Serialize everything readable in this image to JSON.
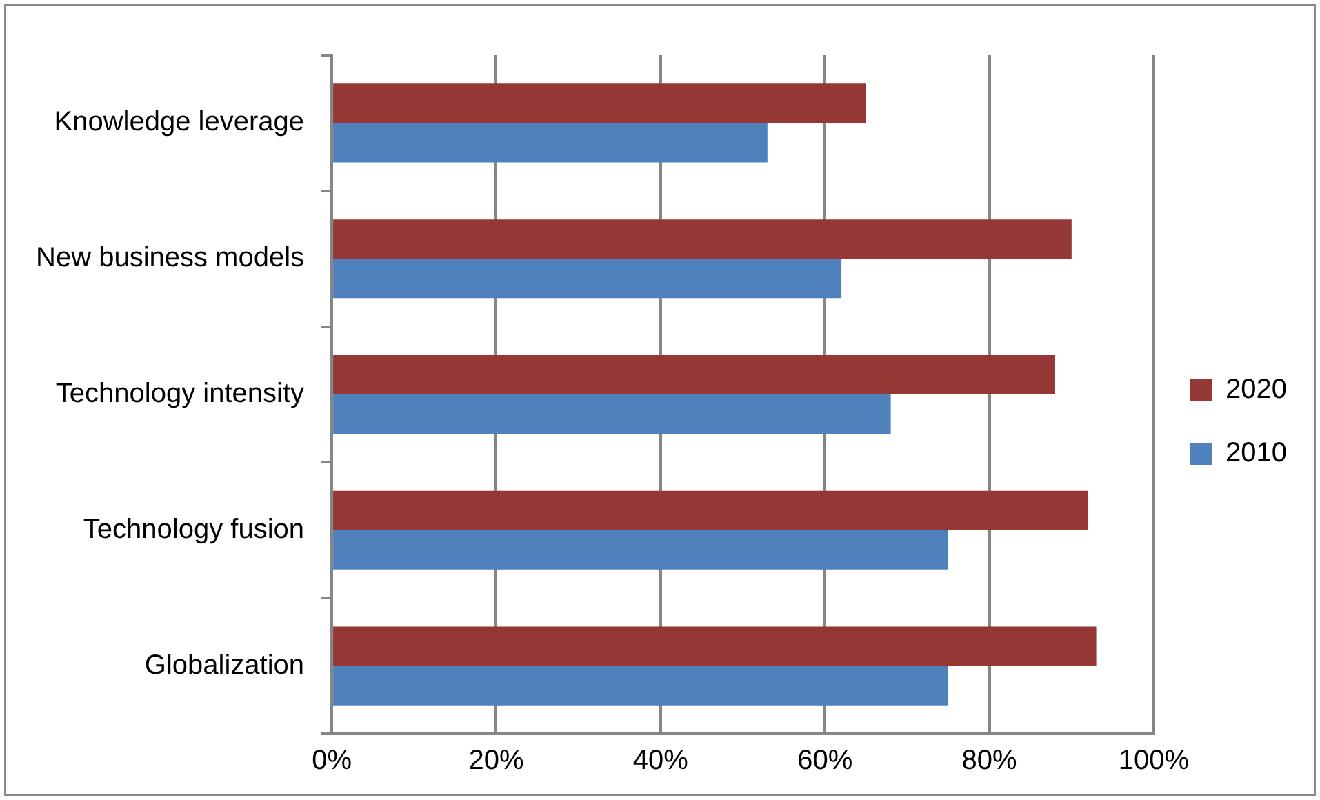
{
  "chart_data": {
    "type": "bar",
    "orientation": "horizontal",
    "categories": [
      "Knowledge leverage",
      "New business models",
      "Technology intensity",
      "Technology fusion",
      "Globalization"
    ],
    "series": [
      {
        "name": "2020",
        "color": "#953735",
        "values": [
          65,
          90,
          88,
          92,
          93
        ]
      },
      {
        "name": "2010",
        "color": "#4f81bd",
        "values": [
          53,
          62,
          68,
          75,
          75
        ]
      }
    ],
    "xlim": [
      0,
      100
    ],
    "xticks": [
      {
        "value": 0,
        "label": "0%"
      },
      {
        "value": 20,
        "label": "20%"
      },
      {
        "value": 40,
        "label": "40%"
      },
      {
        "value": 60,
        "label": "60%"
      },
      {
        "value": 80,
        "label": "80%"
      },
      {
        "value": 100,
        "label": "100%"
      }
    ],
    "grid": "x",
    "legend": "right"
  }
}
